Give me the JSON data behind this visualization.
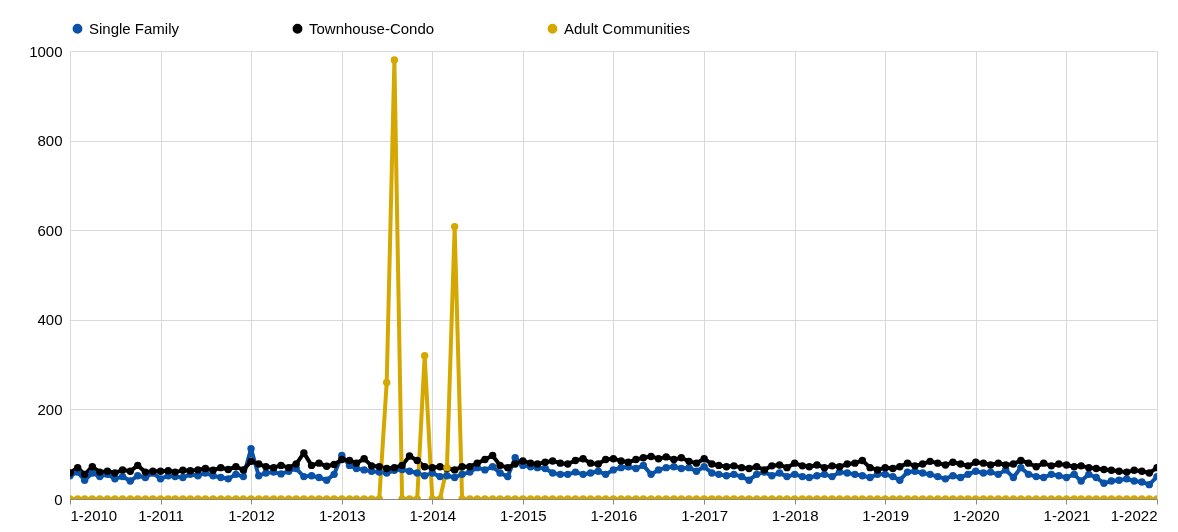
{
  "chart_data": {
    "type": "line",
    "x": [
      "2010-01",
      "2010-02",
      "2010-03",
      "2010-04",
      "2010-05",
      "2010-06",
      "2010-07",
      "2010-08",
      "2010-09",
      "2010-10",
      "2010-11",
      "2010-12",
      "2011-01",
      "2011-02",
      "2011-03",
      "2011-04",
      "2011-05",
      "2011-06",
      "2011-07",
      "2011-08",
      "2011-09",
      "2011-10",
      "2011-11",
      "2011-12",
      "2012-01",
      "2012-02",
      "2012-03",
      "2012-04",
      "2012-05",
      "2012-06",
      "2012-07",
      "2012-08",
      "2012-09",
      "2012-10",
      "2012-11",
      "2012-12",
      "2013-01",
      "2013-02",
      "2013-03",
      "2013-04",
      "2013-05",
      "2013-06",
      "2013-07",
      "2013-08",
      "2013-09",
      "2013-10",
      "2013-11",
      "2013-12",
      "2014-01",
      "2014-02",
      "2014-03",
      "2014-04",
      "2014-05",
      "2014-06",
      "2014-07",
      "2014-08",
      "2014-09",
      "2014-10",
      "2014-11",
      "2014-12",
      "2015-01",
      "2015-02",
      "2015-03",
      "2015-04",
      "2015-05",
      "2015-06",
      "2015-07",
      "2015-08",
      "2015-09",
      "2015-10",
      "2015-11",
      "2015-12",
      "2016-01",
      "2016-02",
      "2016-03",
      "2016-04",
      "2016-05",
      "2016-06",
      "2016-07",
      "2016-08",
      "2016-09",
      "2016-10",
      "2016-11",
      "2016-12",
      "2017-01",
      "2017-02",
      "2017-03",
      "2017-04",
      "2017-05",
      "2017-06",
      "2017-07",
      "2017-08",
      "2017-09",
      "2017-10",
      "2017-11",
      "2017-12",
      "2018-01",
      "2018-02",
      "2018-03",
      "2018-04",
      "2018-05",
      "2018-06",
      "2018-07",
      "2018-08",
      "2018-09",
      "2018-10",
      "2018-11",
      "2018-12",
      "2019-01",
      "2019-02",
      "2019-03",
      "2019-04",
      "2019-05",
      "2019-06",
      "2019-07",
      "2019-08",
      "2019-09",
      "2019-10",
      "2019-11",
      "2019-12",
      "2020-01",
      "2020-02",
      "2020-03",
      "2020-04",
      "2020-05",
      "2020-06",
      "2020-07",
      "2020-08",
      "2020-09",
      "2020-10",
      "2020-11",
      "2020-12",
      "2021-01",
      "2021-02",
      "2021-03",
      "2021-04",
      "2021-05",
      "2021-06",
      "2021-07",
      "2021-08",
      "2021-09",
      "2021-10",
      "2021-11",
      "2021-12",
      "2022-01"
    ],
    "series": [
      {
        "name": "Single Family",
        "color": "#0a52a8",
        "values": [
          52,
          60,
          42,
          58,
          50,
          55,
          45,
          50,
          40,
          52,
          48,
          58,
          45,
          52,
          50,
          48,
          55,
          52,
          58,
          52,
          48,
          45,
          55,
          50,
          112,
          52,
          58,
          60,
          56,
          62,
          68,
          50,
          52,
          48,
          42,
          55,
          97,
          75,
          68,
          65,
          62,
          60,
          58,
          64,
          66,
          62,
          58,
          52,
          58,
          50,
          52,
          48,
          55,
          60,
          70,
          65,
          72,
          58,
          50,
          92,
          75,
          72,
          70,
          68,
          58,
          55,
          55,
          60,
          55,
          58,
          62,
          55,
          65,
          70,
          72,
          68,
          75,
          55,
          65,
          70,
          72,
          68,
          70,
          62,
          72,
          58,
          55,
          52,
          55,
          50,
          42,
          55,
          60,
          52,
          58,
          50,
          55,
          50,
          48,
          52,
          55,
          50,
          60,
          58,
          55,
          52,
          48,
          55,
          55,
          50,
          42,
          60,
          62,
          58,
          55,
          50,
          45,
          52,
          48,
          55,
          62,
          58,
          60,
          55,
          65,
          48,
          70,
          55,
          50,
          48,
          55,
          52,
          48,
          55,
          40,
          55,
          48,
          35,
          40,
          42,
          45,
          40,
          38,
          32,
          50
        ]
      },
      {
        "name": "Townhouse-Condo",
        "color": "#000000",
        "values": [
          58,
          70,
          55,
          72,
          60,
          62,
          58,
          65,
          62,
          75,
          60,
          62,
          62,
          63,
          60,
          64,
          63,
          65,
          68,
          64,
          70,
          66,
          72,
          65,
          84,
          78,
          72,
          70,
          75,
          70,
          78,
          103,
          75,
          80,
          73,
          77,
          88,
          86,
          80,
          90,
          74,
          72,
          68,
          70,
          75,
          96,
          86,
          72,
          70,
          72,
          68,
          65,
          72,
          72,
          80,
          88,
          97,
          75,
          70,
          78,
          85,
          80,
          78,
          82,
          85,
          80,
          78,
          86,
          90,
          80,
          78,
          88,
          90,
          85,
          82,
          88,
          92,
          95,
          90,
          94,
          88,
          92,
          84,
          80,
          90,
          78,
          75,
          72,
          74,
          70,
          68,
          72,
          65,
          74,
          76,
          70,
          80,
          74,
          72,
          76,
          70,
          74,
          72,
          78,
          80,
          86,
          70,
          65,
          70,
          68,
          72,
          80,
          74,
          78,
          84,
          80,
          76,
          82,
          78,
          74,
          82,
          80,
          76,
          80,
          76,
          78,
          86,
          80,
          72,
          80,
          74,
          78,
          76,
          72,
          74,
          70,
          68,
          66,
          64,
          62,
          60,
          64,
          62,
          58,
          70
        ]
      },
      {
        "name": "Adult Communities",
        "color": "#d4a800",
        "values": [
          0,
          0,
          0,
          0,
          0,
          0,
          0,
          0,
          0,
          0,
          0,
          0,
          0,
          0,
          0,
          0,
          0,
          0,
          0,
          0,
          0,
          0,
          0,
          0,
          0,
          0,
          0,
          0,
          0,
          0,
          0,
          0,
          0,
          0,
          0,
          0,
          0,
          0,
          0,
          0,
          0,
          0,
          260,
          980,
          0,
          0,
          0,
          320,
          0,
          0,
          70,
          608,
          0,
          0,
          0,
          0,
          0,
          0,
          0,
          0,
          0,
          0,
          0,
          0,
          0,
          0,
          0,
          0,
          0,
          0,
          0,
          0,
          0,
          0,
          0,
          0,
          0,
          0,
          0,
          0,
          0,
          0,
          0,
          0,
          0,
          0,
          0,
          0,
          0,
          0,
          0,
          0,
          0,
          0,
          0,
          0,
          0,
          0,
          0,
          0,
          0,
          0,
          0,
          0,
          0,
          0,
          0,
          0,
          0,
          0,
          0,
          0,
          0,
          0,
          0,
          0,
          0,
          0,
          0,
          0,
          0,
          0,
          0,
          0,
          0,
          0,
          0,
          0,
          0,
          0,
          0,
          0,
          0,
          0,
          0,
          0,
          0,
          0,
          0,
          0,
          0,
          0,
          0,
          0,
          0
        ]
      }
    ],
    "xlim": [
      "2010-01",
      "2022-01"
    ],
    "xticks": [
      {
        "value": "2010-01",
        "label": "1-2010"
      },
      {
        "value": "2011-01",
        "label": "1-2011"
      },
      {
        "value": "2012-01",
        "label": "1-2012"
      },
      {
        "value": "2013-01",
        "label": "1-2013"
      },
      {
        "value": "2014-01",
        "label": "1-2014"
      },
      {
        "value": "2015-01",
        "label": "1-2015"
      },
      {
        "value": "2016-01",
        "label": "1-2016"
      },
      {
        "value": "2017-01",
        "label": "1-2017"
      },
      {
        "value": "2018-01",
        "label": "1-2018"
      },
      {
        "value": "2019-01",
        "label": "1-2019"
      },
      {
        "value": "2020-01",
        "label": "1-2020"
      },
      {
        "value": "2021-01",
        "label": "1-2021"
      },
      {
        "value": "2022-01",
        "label": "1-2022"
      }
    ],
    "ylim": [
      0,
      1000
    ],
    "yticks": [
      0,
      200,
      400,
      600,
      800,
      1000
    ],
    "grid": true,
    "legend": "top left",
    "marker": "circle",
    "line_style": "solid"
  }
}
